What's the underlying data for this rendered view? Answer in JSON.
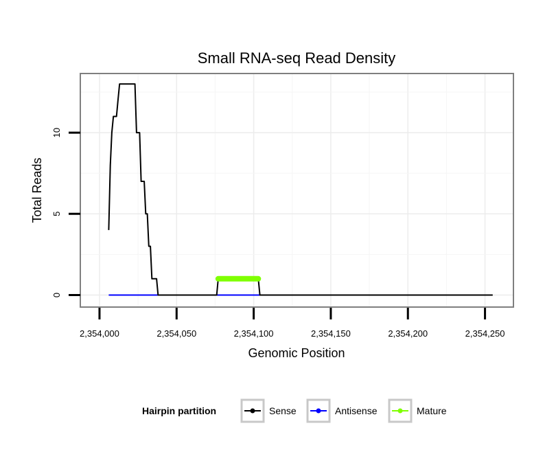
{
  "chart_data": {
    "type": "line",
    "title": "Small RNA-seq Read Density",
    "xlabel": "Genomic Position",
    "ylabel": "Total Reads",
    "xlim": [
      2353988,
      2354268
    ],
    "ylim": [
      -0.7,
      13.6
    ],
    "x_ticks": [
      2354000,
      2354050,
      2354100,
      2354150,
      2354200,
      2354250
    ],
    "x_tick_labels": [
      "2,354,000",
      "2,354,050",
      "2,354,100",
      "2,354,150",
      "2,354,200",
      "2,354,250"
    ],
    "y_ticks": [
      0,
      5,
      10
    ],
    "y_tick_labels": [
      "0",
      "5",
      "10"
    ],
    "grid": true,
    "legend": {
      "title": "Hairpin partition",
      "position": "bottom",
      "entries": [
        "Sense",
        "Antisense",
        "Mature"
      ]
    },
    "series": [
      {
        "name": "Sense",
        "color": "#000000",
        "x": [
          2354006,
          2354007,
          2354008,
          2354009,
          2354010,
          2354011,
          2354012,
          2354013,
          2354014,
          2354015,
          2354016,
          2354017,
          2354018,
          2354019,
          2354020,
          2354021,
          2354022,
          2354023,
          2354024,
          2354025,
          2354026,
          2354027,
          2354028,
          2354029,
          2354030,
          2354031,
          2354032,
          2354033,
          2354034,
          2354035,
          2354036,
          2354037,
          2354038,
          2354039,
          2354040,
          2354076,
          2354077,
          2354103,
          2354104,
          2354255
        ],
        "values": [
          4,
          8,
          10,
          11,
          11,
          11,
          12,
          13,
          13,
          13,
          13,
          13,
          13,
          13,
          13,
          13,
          13,
          13,
          10,
          10,
          10,
          7,
          7,
          7,
          5,
          5,
          3,
          3,
          1,
          1,
          1,
          1,
          0,
          0,
          0,
          0,
          1,
          1,
          0,
          0
        ]
      },
      {
        "name": "Antisense",
        "color": "#0000ff",
        "x": [
          2354006,
          2354104
        ],
        "values": [
          0,
          0
        ]
      },
      {
        "name": "Mature",
        "color": "#7fff00",
        "x": [
          2354077,
          2354103
        ],
        "values": [
          1,
          1
        ]
      }
    ]
  }
}
